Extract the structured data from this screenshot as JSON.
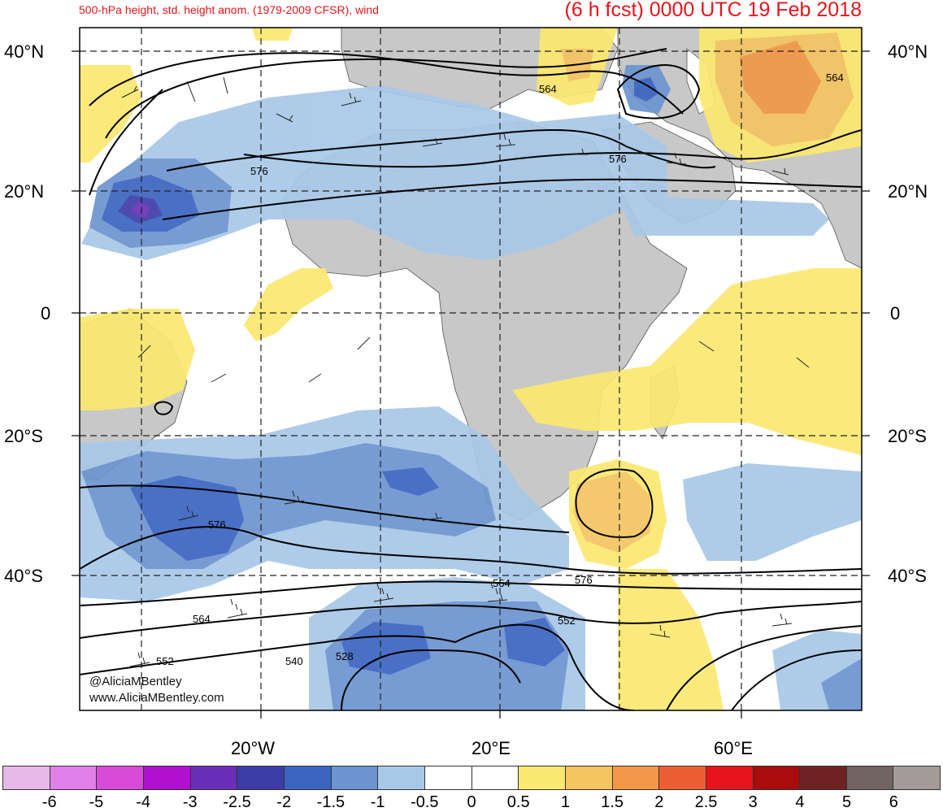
{
  "header": {
    "left_title": "500-hPa height, std. height anom. (1979-2009 CFSR), wind",
    "right_title": "(6 h fcst) 0000 UTC 19 Feb 2018"
  },
  "lat_labels": [
    "40°N",
    "20°N",
    "0",
    "20°S",
    "40°S"
  ],
  "lon_labels": [
    "20°W",
    "20°E",
    "60°E"
  ],
  "contour_labels": [
    "564",
    "564",
    "576",
    "576",
    "576",
    "576",
    "564",
    "552",
    "552",
    "540",
    "528"
  ],
  "credits": [
    "@AliciaMBentley",
    "www.AliciaMBentley.com"
  ],
  "colorbar": {
    "labels": [
      "-6",
      "-5",
      "-4",
      "-3",
      "-2.5",
      "-2",
      "-1.5",
      "-1",
      "-0.5",
      "0",
      "0.5",
      "1",
      "1.5",
      "2",
      "2.5",
      "3",
      "4",
      "5",
      "6"
    ],
    "colors": [
      "#e8b8e8",
      "#e080e8",
      "#d84ad8",
      "#b010d0",
      "#6a2fb8",
      "#3e3ca8",
      "#3a64c0",
      "#6c94d0",
      "#a8c8e8",
      "#ffffff",
      "#ffffff",
      "#fbe870",
      "#f4c460",
      "#f29848",
      "#ee5e34",
      "#e8141b",
      "#a80c0c",
      "#6e2222",
      "#726462",
      "#a49c9a"
    ]
  },
  "colors": {
    "land": "#c8c8c8",
    "neg_light": "#a8c8e8",
    "neg_mid": "#6c94d0",
    "neg_dark": "#3a64c0",
    "pos_light": "#fbe870",
    "pos_mid": "#f4c460",
    "pos_dark": "#f29848",
    "title_red": "#e8141b"
  }
}
